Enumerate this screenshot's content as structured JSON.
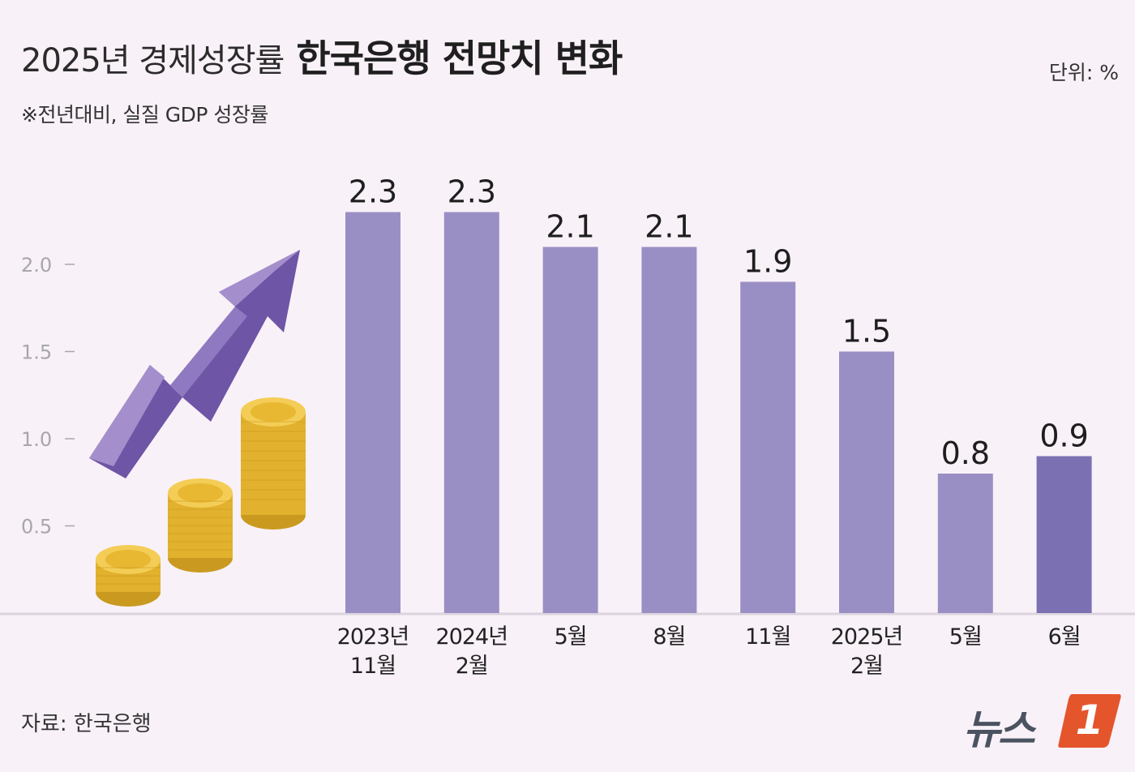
{
  "title": {
    "light": "2025년 경제성장률",
    "bold": "한국은행 전망치 변화"
  },
  "subtitle": "※전년대비, 실질 GDP 성장률",
  "unit": "단위: %",
  "source": "자료: 한국은행",
  "logo": {
    "text": "뉴스",
    "badge": "1"
  },
  "colors": {
    "bar": "#9a8fc4",
    "bar_highlight": "#7b71b2",
    "axis": "#dcd4dc",
    "tick_text": "#a7a7a7",
    "value_text": "#1e1e1e",
    "coin": "#e9b833",
    "arrow": "#6e55a6"
  },
  "chart_data": {
    "type": "bar",
    "title": "2025년 경제성장률 한국은행 전망치 변화",
    "ylabel": "%",
    "ylim": [
      0,
      2.5
    ],
    "yticks": [
      0.5,
      1.0,
      1.5,
      2.0
    ],
    "ytick_labels": [
      "0.5",
      "1.0",
      "1.5",
      "2.0"
    ],
    "grid": false,
    "categories": [
      {
        "top": "2023년",
        "bottom": "11월"
      },
      {
        "top": "2024년",
        "bottom": "2월"
      },
      {
        "top": "5월",
        "bottom": ""
      },
      {
        "top": "8월",
        "bottom": ""
      },
      {
        "top": "11월",
        "bottom": ""
      },
      {
        "top": "2025년",
        "bottom": "2월"
      },
      {
        "top": "5월",
        "bottom": ""
      },
      {
        "top": "6월",
        "bottom": ""
      }
    ],
    "values": [
      2.3,
      2.3,
      2.1,
      2.1,
      1.9,
      1.5,
      0.8,
      0.9
    ],
    "value_labels": [
      "2.3",
      "2.3",
      "2.1",
      "2.1",
      "1.9",
      "1.5",
      "0.8",
      "0.9"
    ],
    "highlight_index": 7
  }
}
